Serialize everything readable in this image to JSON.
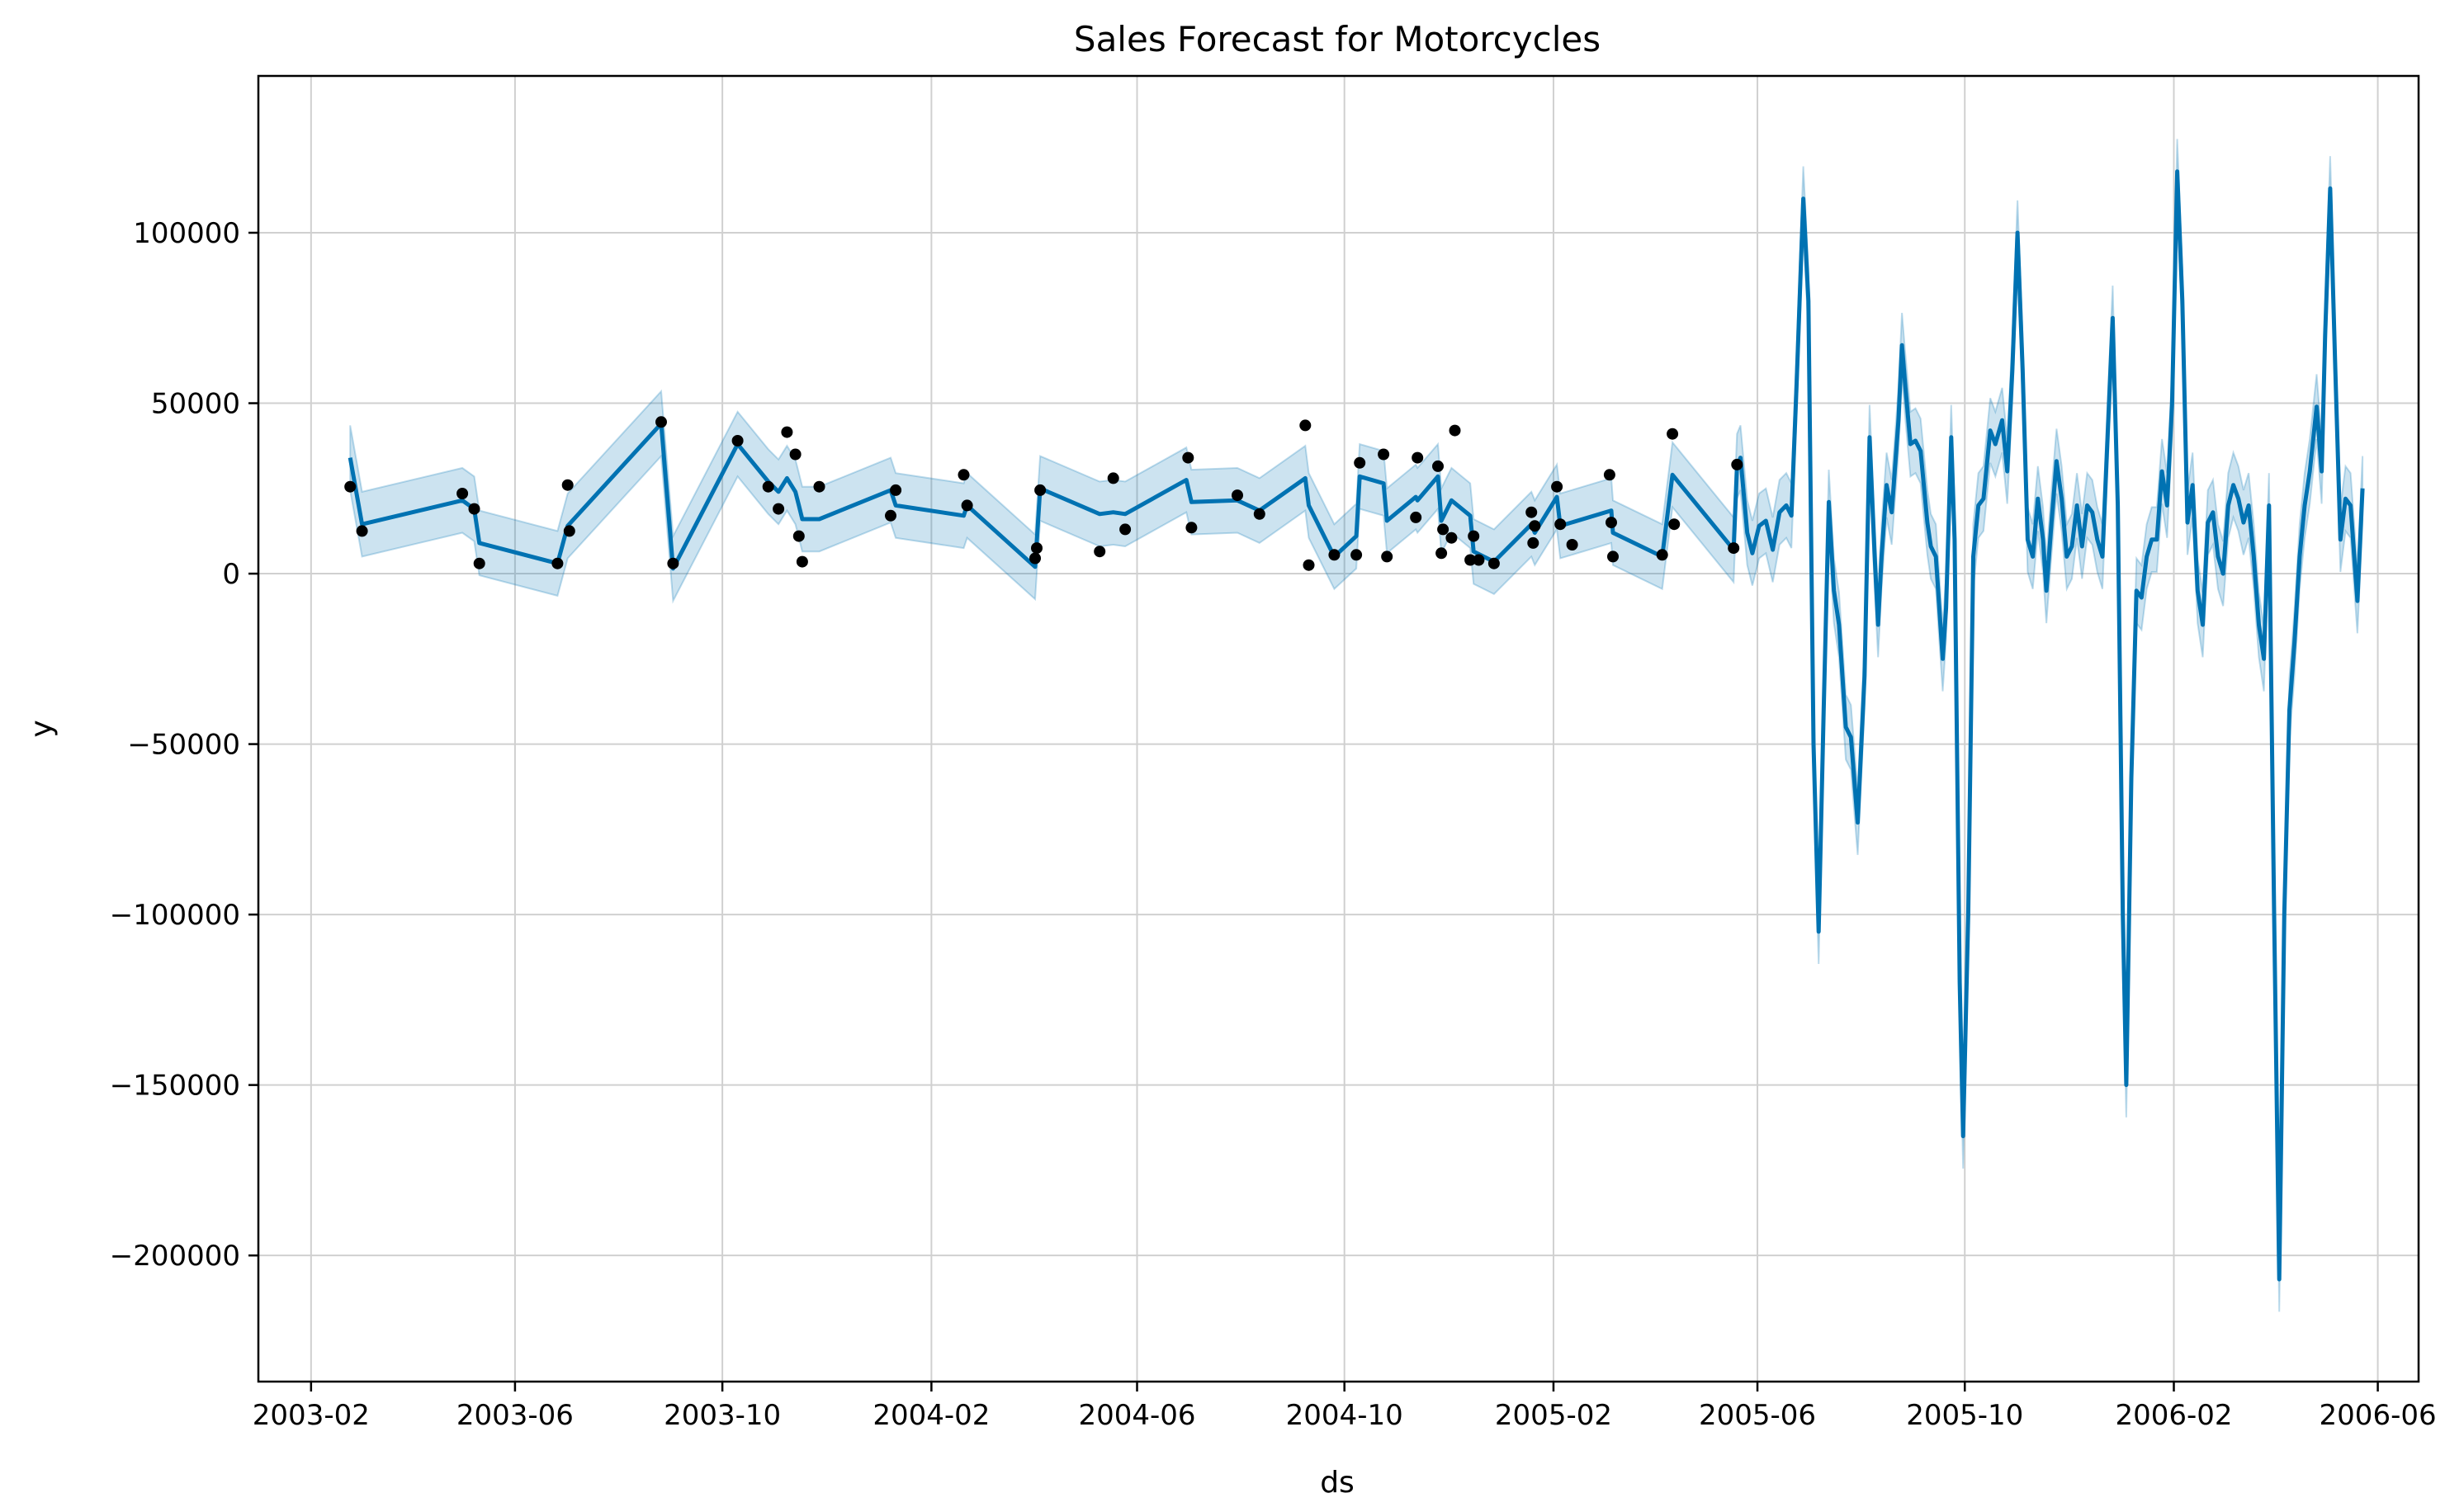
{
  "chart_data": {
    "type": "line",
    "title": "Sales Forecast for Motorcycles",
    "xlabel": "ds",
    "ylabel": "y",
    "x_ticks": [
      "2003-02",
      "2003-06",
      "2003-10",
      "2004-02",
      "2004-06",
      "2004-10",
      "2005-02",
      "2005-06",
      "2005-10",
      "2006-02",
      "2006-06"
    ],
    "y_ticks": [
      100000,
      50000,
      0,
      -50000,
      -100000,
      -150000,
      -200000
    ],
    "y_tick_labels": [
      "100000",
      "50000",
      "0",
      "−50000",
      "−100000",
      "−150000",
      "−200000"
    ],
    "xlim": [
      "2003-01-01",
      "2006-06-25"
    ],
    "ylim": [
      -237000,
      146000
    ],
    "grid": true,
    "colors": {
      "forecast": "#0072b2",
      "band": "#0072b2",
      "observed": "#000000",
      "grid": "#d0d0d0"
    },
    "series": [
      {
        "kind": "observed-points",
        "points": [
          [
            "2003-02-24",
            25500
          ],
          [
            "2003-03-03",
            12500
          ],
          [
            "2003-05-01",
            23500
          ],
          [
            "2003-05-08",
            19000
          ],
          [
            "2003-05-11",
            3000
          ],
          [
            "2003-06-26",
            3000
          ],
          [
            "2003-07-02",
            26000
          ],
          [
            "2003-07-03",
            12500
          ],
          [
            "2003-08-26",
            44500
          ],
          [
            "2003-09-02",
            3000
          ],
          [
            "2003-10-10",
            39000
          ],
          [
            "2003-10-28",
            25500
          ],
          [
            "2003-11-03",
            19000
          ],
          [
            "2003-11-08",
            41500
          ],
          [
            "2003-11-13",
            35000
          ],
          [
            "2003-11-15",
            11000
          ],
          [
            "2003-11-17",
            3500
          ],
          [
            "2003-11-27",
            25500
          ],
          [
            "2004-01-08",
            17000
          ],
          [
            "2004-01-11",
            24500
          ],
          [
            "2004-02-20",
            29000
          ],
          [
            "2004-02-22",
            20000
          ],
          [
            "2004-04-02",
            4500
          ],
          [
            "2004-04-03",
            7500
          ],
          [
            "2004-04-05",
            24500
          ],
          [
            "2004-05-10",
            6500
          ],
          [
            "2004-05-18",
            28000
          ],
          [
            "2004-05-25",
            13000
          ],
          [
            "2004-07-01",
            34000
          ],
          [
            "2004-07-03",
            13500
          ],
          [
            "2004-07-30",
            23000
          ],
          [
            "2004-08-12",
            17500
          ],
          [
            "2004-09-08",
            43500
          ],
          [
            "2004-09-10",
            2500
          ],
          [
            "2004-09-25",
            5500
          ],
          [
            "2004-10-08",
            5500
          ],
          [
            "2004-10-10",
            32500
          ],
          [
            "2004-10-24",
            35000
          ],
          [
            "2004-10-26",
            5000
          ],
          [
            "2004-11-12",
            16500
          ],
          [
            "2004-11-13",
            34000
          ],
          [
            "2004-11-25",
            31500
          ],
          [
            "2004-11-27",
            6000
          ],
          [
            "2004-11-28",
            13000
          ],
          [
            "2004-12-03",
            10500
          ],
          [
            "2004-12-05",
            42000
          ],
          [
            "2004-12-14",
            4000
          ],
          [
            "2004-12-16",
            11000
          ],
          [
            "2004-12-19",
            4000
          ],
          [
            "2004-12-28",
            3000
          ],
          [
            "2005-01-19",
            18000
          ],
          [
            "2005-01-20",
            9000
          ],
          [
            "2005-01-21",
            14000
          ],
          [
            "2005-02-03",
            25500
          ],
          [
            "2005-02-05",
            14500
          ],
          [
            "2005-02-12",
            8500
          ],
          [
            "2005-03-06",
            29000
          ],
          [
            "2005-03-07",
            15000
          ],
          [
            "2005-03-08",
            5000
          ],
          [
            "2005-04-06",
            5500
          ],
          [
            "2005-04-12",
            41000
          ],
          [
            "2005-04-13",
            14500
          ],
          [
            "2005-05-18",
            7500
          ],
          [
            "2005-05-20",
            32000
          ]
        ]
      },
      {
        "kind": "forecast-line",
        "points": [
          [
            "2003-02-24",
            34000
          ],
          [
            "2003-03-03",
            14500
          ],
          [
            "2003-05-01",
            21500
          ],
          [
            "2003-05-08",
            19000
          ],
          [
            "2003-05-11",
            9000
          ],
          [
            "2003-06-26",
            3000
          ],
          [
            "2003-07-02",
            14000
          ],
          [
            "2003-08-26",
            44000
          ],
          [
            "2003-09-02",
            1500
          ],
          [
            "2003-10-10",
            38000
          ],
          [
            "2003-10-28",
            27000
          ],
          [
            "2003-11-03",
            24000
          ],
          [
            "2003-11-08",
            28000
          ],
          [
            "2003-11-13",
            24000
          ],
          [
            "2003-11-15",
            20000
          ],
          [
            "2003-11-17",
            16000
          ],
          [
            "2003-11-27",
            16000
          ],
          [
            "2004-01-08",
            24500
          ],
          [
            "2004-01-11",
            20000
          ],
          [
            "2004-02-20",
            17000
          ],
          [
            "2004-02-22",
            20000
          ],
          [
            "2004-04-02",
            2000
          ],
          [
            "2004-04-05",
            25000
          ],
          [
            "2004-05-10",
            17500
          ],
          [
            "2004-05-18",
            18000
          ],
          [
            "2004-05-25",
            17500
          ],
          [
            "2004-06-30",
            27500
          ],
          [
            "2004-07-03",
            21000
          ],
          [
            "2004-07-30",
            21500
          ],
          [
            "2004-08-12",
            18500
          ],
          [
            "2004-09-08",
            28000
          ],
          [
            "2004-09-10",
            20000
          ],
          [
            "2004-09-25",
            5000
          ],
          [
            "2004-10-08",
            11000
          ],
          [
            "2004-10-10",
            28500
          ],
          [
            "2004-10-24",
            26500
          ],
          [
            "2004-10-26",
            15500
          ],
          [
            "2004-11-12",
            22500
          ],
          [
            "2004-11-13",
            21500
          ],
          [
            "2004-11-25",
            28500
          ],
          [
            "2004-11-27",
            15500
          ],
          [
            "2004-12-03",
            21500
          ],
          [
            "2004-12-14",
            17000
          ],
          [
            "2004-12-16",
            6500
          ],
          [
            "2004-12-28",
            3500
          ],
          [
            "2005-01-19",
            14500
          ],
          [
            "2005-01-21",
            12000
          ],
          [
            "2005-02-03",
            22500
          ],
          [
            "2005-02-05",
            14000
          ],
          [
            "2005-03-07",
            18500
          ],
          [
            "2005-03-08",
            12000
          ],
          [
            "2005-04-06",
            5000
          ],
          [
            "2005-04-12",
            29000
          ],
          [
            "2005-05-18",
            7000
          ],
          [
            "2005-05-20",
            31500
          ],
          [
            "2005-05-22",
            34000
          ],
          [
            "2005-05-26",
            12000
          ],
          [
            "2005-05-29",
            6000
          ],
          [
            "2005-06-02",
            14000
          ],
          [
            "2005-06-06",
            15500
          ],
          [
            "2005-06-10",
            7000
          ],
          [
            "2005-06-14",
            18000
          ],
          [
            "2005-06-18",
            20000
          ],
          [
            "2005-06-21",
            17000
          ],
          [
            "2005-06-24",
            55000
          ],
          [
            "2005-06-28",
            110000
          ],
          [
            "2005-07-01",
            80000
          ],
          [
            "2005-07-04",
            -50000
          ],
          [
            "2005-07-07",
            -105000
          ],
          [
            "2005-07-10",
            -40000
          ],
          [
            "2005-07-13",
            21000
          ],
          [
            "2005-07-16",
            -5000
          ],
          [
            "2005-07-19",
            -15000
          ],
          [
            "2005-07-23",
            -45000
          ],
          [
            "2005-07-26",
            -48000
          ],
          [
            "2005-07-30",
            -73000
          ],
          [
            "2005-08-03",
            -30000
          ],
          [
            "2005-08-06",
            40000
          ],
          [
            "2005-08-09",
            5000
          ],
          [
            "2005-08-11",
            -15000
          ],
          [
            "2005-08-13",
            5000
          ],
          [
            "2005-08-16",
            26000
          ],
          [
            "2005-08-19",
            18000
          ],
          [
            "2005-08-23",
            45000
          ],
          [
            "2005-08-25",
            67000
          ],
          [
            "2005-08-27",
            55000
          ],
          [
            "2005-08-30",
            38000
          ],
          [
            "2005-09-02",
            39000
          ],
          [
            "2005-09-05",
            36000
          ],
          [
            "2005-09-09",
            15000
          ],
          [
            "2005-09-11",
            8000
          ],
          [
            "2005-09-14",
            5000
          ],
          [
            "2005-09-18",
            -25000
          ],
          [
            "2005-09-20",
            -10000
          ],
          [
            "2005-09-23",
            40000
          ],
          [
            "2005-09-25",
            10000
          ],
          [
            "2005-09-28",
            -120000
          ],
          [
            "2005-09-30",
            -165000
          ],
          [
            "2005-10-03",
            -100000
          ],
          [
            "2005-10-06",
            5000
          ],
          [
            "2005-10-09",
            20000
          ],
          [
            "2005-10-12",
            22000
          ],
          [
            "2005-10-16",
            42000
          ],
          [
            "2005-10-19",
            38000
          ],
          [
            "2005-10-23",
            45000
          ],
          [
            "2005-10-26",
            30000
          ],
          [
            "2005-10-29",
            60000
          ],
          [
            "2005-11-01",
            100000
          ],
          [
            "2005-11-04",
            60000
          ],
          [
            "2005-11-07",
            10000
          ],
          [
            "2005-11-10",
            5000
          ],
          [
            "2005-11-13",
            22000
          ],
          [
            "2005-11-16",
            10000
          ],
          [
            "2005-11-18",
            -5000
          ],
          [
            "2005-11-21",
            15000
          ],
          [
            "2005-11-24",
            33000
          ],
          [
            "2005-11-27",
            22000
          ],
          [
            "2005-11-30",
            5000
          ],
          [
            "2005-12-03",
            8000
          ],
          [
            "2005-12-06",
            20000
          ],
          [
            "2005-12-09",
            8000
          ],
          [
            "2005-12-12",
            20000
          ],
          [
            "2005-12-15",
            18000
          ],
          [
            "2005-12-18",
            10000
          ],
          [
            "2005-12-21",
            5000
          ],
          [
            "2005-12-24",
            40000
          ],
          [
            "2005-12-27",
            75000
          ],
          [
            "2005-12-30",
            20000
          ],
          [
            "2006-01-02",
            -100000
          ],
          [
            "2006-01-04",
            -150000
          ],
          [
            "2006-01-07",
            -60000
          ],
          [
            "2006-01-10",
            -5000
          ],
          [
            "2006-01-13",
            -7000
          ],
          [
            "2006-01-16",
            5000
          ],
          [
            "2006-01-19",
            10000
          ],
          [
            "2006-01-22",
            10000
          ],
          [
            "2006-01-25",
            30000
          ],
          [
            "2006-01-28",
            20000
          ],
          [
            "2006-01-31",
            50000
          ],
          [
            "2006-02-03",
            118000
          ],
          [
            "2006-02-06",
            80000
          ],
          [
            "2006-02-09",
            15000
          ],
          [
            "2006-02-12",
            26000
          ],
          [
            "2006-02-15",
            -5000
          ],
          [
            "2006-02-18",
            -15000
          ],
          [
            "2006-02-21",
            15000
          ],
          [
            "2006-02-24",
            18000
          ],
          [
            "2006-02-27",
            5000
          ],
          [
            "2006-03-02",
            0
          ],
          [
            "2006-03-05",
            20000
          ],
          [
            "2006-03-08",
            26000
          ],
          [
            "2006-03-11",
            22000
          ],
          [
            "2006-03-14",
            15000
          ],
          [
            "2006-03-17",
            20000
          ],
          [
            "2006-03-20",
            5000
          ],
          [
            "2006-03-23",
            -15000
          ],
          [
            "2006-03-26",
            -25000
          ],
          [
            "2006-03-29",
            20000
          ],
          [
            "2006-04-01",
            -100000
          ],
          [
            "2006-04-04",
            -207000
          ],
          [
            "2006-04-07",
            -100000
          ],
          [
            "2006-04-10",
            -40000
          ],
          [
            "2006-04-13",
            -20000
          ],
          [
            "2006-04-16",
            5000
          ],
          [
            "2006-04-19",
            20000
          ],
          [
            "2006-04-22",
            30000
          ],
          [
            "2006-04-26",
            49000
          ],
          [
            "2006-04-29",
            30000
          ],
          [
            "2006-05-01",
            70000
          ],
          [
            "2006-05-04",
            113000
          ],
          [
            "2006-05-07",
            60000
          ],
          [
            "2006-05-10",
            10000
          ],
          [
            "2006-05-13",
            22000
          ],
          [
            "2006-05-16",
            20000
          ],
          [
            "2006-05-20",
            -8000
          ],
          [
            "2006-05-23",
            25000
          ]
        ]
      },
      {
        "kind": "uncertainty-band",
        "half_width": 9500
      }
    ]
  }
}
